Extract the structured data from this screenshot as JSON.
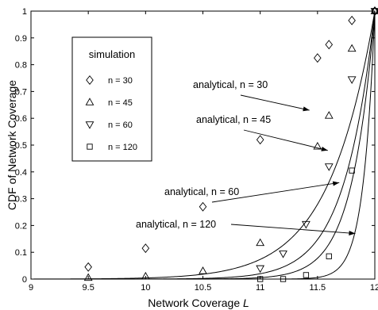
{
  "chart_data": {
    "type": "line",
    "xlabel": "Network Coverage",
    "xlabel_italic": "L",
    "ylabel": "CDF of Network Coverage",
    "xlim": [
      9,
      12
    ],
    "ylim": [
      0,
      1
    ],
    "x_ticks": [
      "9",
      "9.5",
      "10",
      "10.5",
      "11",
      "11.5",
      "12"
    ],
    "y_ticks": [
      "0",
      "0.1",
      "0.2",
      "0.3",
      "0.4",
      "0.5",
      "0.6",
      "0.7",
      "0.8",
      "0.9",
      "1"
    ],
    "grid": false,
    "legend": {
      "title": "simulation",
      "placement": "upper-left",
      "entries": [
        {
          "marker": "diamond",
          "label": "n = 30"
        },
        {
          "marker": "triangle-up",
          "label": "n = 45"
        },
        {
          "marker": "triangle-down",
          "label": "n = 60"
        },
        {
          "marker": "square",
          "label": "n = 120"
        }
      ]
    },
    "analytical_curves": [
      {
        "label": "analytical, n = 30",
        "k": 30
      },
      {
        "label": "analytical, n = 45",
        "k": 45
      },
      {
        "label": "analytical, n = 60",
        "k": 60
      },
      {
        "label": "analytical, n = 120",
        "k": 120
      }
    ],
    "annotations": [
      {
        "text": "analytical, n = 30",
        "points_to": [
          11.43,
          0.63
        ]
      },
      {
        "text": "analytical, n = 45",
        "points_to": [
          11.59,
          0.48
        ]
      },
      {
        "text": "analytical, n = 60",
        "points_to": [
          11.69,
          0.36
        ]
      },
      {
        "text": "analytical, n = 120",
        "points_to": [
          11.83,
          0.17
        ]
      }
    ],
    "simulation_series": [
      {
        "n": 30,
        "marker": "diamond",
        "x": [
          9.5,
          10,
          10.5,
          11,
          11.5,
          11.6,
          11.8,
          12
        ],
        "y": [
          0.045,
          0.115,
          0.27,
          0.52,
          0.825,
          0.875,
          0.965,
          1.0
        ]
      },
      {
        "n": 45,
        "marker": "triangle-up",
        "x": [
          9.5,
          10,
          10.5,
          11,
          11.5,
          11.6,
          11.8,
          12
        ],
        "y": [
          0.005,
          0.01,
          0.03,
          0.135,
          0.495,
          0.61,
          0.86,
          1.0
        ]
      },
      {
        "n": 60,
        "marker": "triangle-down",
        "x": [
          11,
          11.2,
          11.4,
          11.6,
          11.8,
          12
        ],
        "y": [
          0.04,
          0.095,
          0.205,
          0.42,
          0.745,
          1.0
        ]
      },
      {
        "n": 120,
        "marker": "square",
        "x": [
          11,
          11.2,
          11.4,
          11.6,
          11.8,
          12
        ],
        "y": [
          0.0,
          0.0,
          0.015,
          0.085,
          0.405,
          1.0
        ]
      }
    ]
  }
}
